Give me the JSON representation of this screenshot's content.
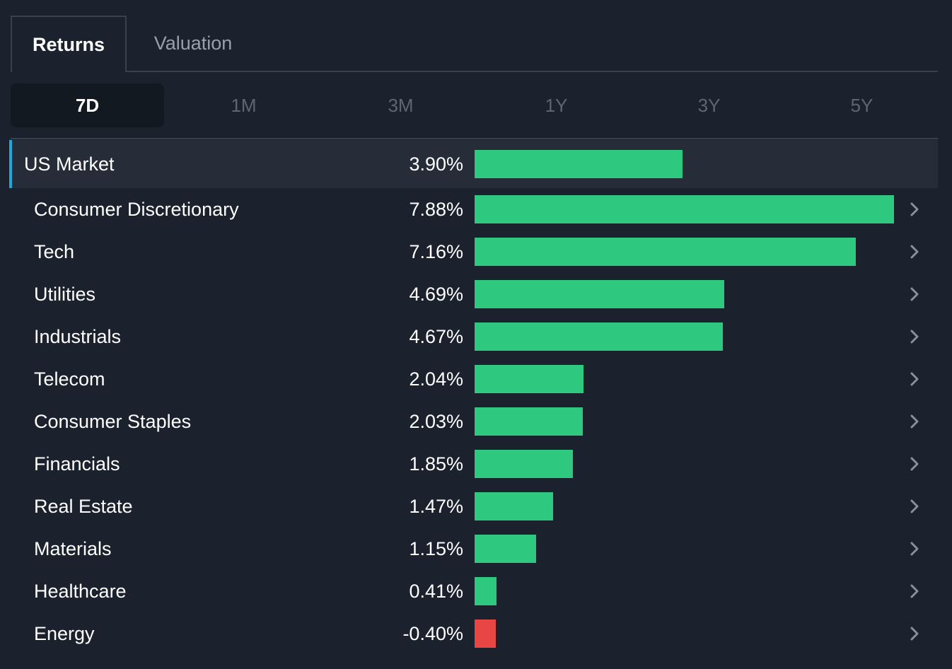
{
  "tabs": {
    "main": [
      {
        "label": "Returns",
        "active": true
      },
      {
        "label": "Valuation",
        "active": false
      }
    ],
    "periods": [
      {
        "label": "7D",
        "active": true
      },
      {
        "label": "1M",
        "active": false
      },
      {
        "label": "3M",
        "active": false
      },
      {
        "label": "1Y",
        "active": false
      },
      {
        "label": "3Y",
        "active": false
      },
      {
        "label": "5Y",
        "active": false
      }
    ]
  },
  "colors": {
    "positive": "#2ec97f",
    "negative": "#e84545",
    "accent": "#1fa8d8"
  },
  "icons": {
    "row_chevron": "chevron-right-icon"
  },
  "chart_data": {
    "type": "bar",
    "categories": [
      "US Market",
      "Consumer Discretionary",
      "Tech",
      "Utilities",
      "Industrials",
      "Telecom",
      "Consumer Staples",
      "Financials",
      "Real Estate",
      "Materials",
      "Healthcare",
      "Energy"
    ],
    "values": [
      3.9,
      7.88,
      7.16,
      4.69,
      4.67,
      2.04,
      2.03,
      1.85,
      1.47,
      1.15,
      0.41,
      -0.4
    ],
    "value_labels": [
      "3.90%",
      "7.88%",
      "7.16%",
      "4.69%",
      "4.67%",
      "2.04%",
      "2.03%",
      "1.85%",
      "1.47%",
      "1.15%",
      "0.41%",
      "-0.40%"
    ],
    "highlighted_category": "US Market",
    "xlim": [
      0,
      7.88
    ]
  }
}
